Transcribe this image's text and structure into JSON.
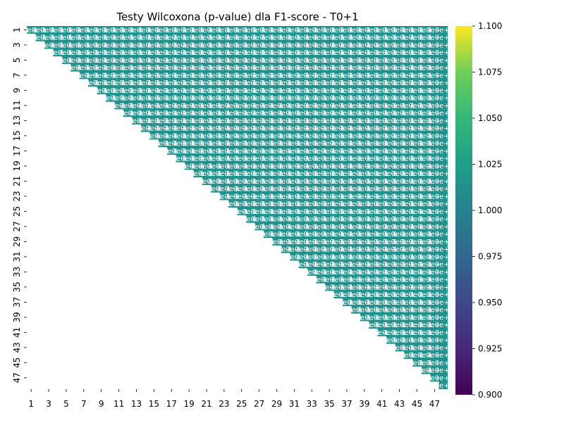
{
  "chart_data": {
    "type": "heatmap",
    "title": "Testy Wilcoxona (p-value) dla F1-score - T0+1",
    "xlabel": "",
    "ylabel": "",
    "n": 48,
    "mask": "lower-triangle (cells where column < row are blank)",
    "cell_value": 1.0,
    "cell_annotation": "1.0e+00",
    "cell_color": "#21918c",
    "annotation_color": "#ffffff",
    "x_tick_labels": [
      "1",
      "3",
      "5",
      "7",
      "9",
      "11",
      "13",
      "15",
      "17",
      "19",
      "21",
      "23",
      "25",
      "27",
      "29",
      "31",
      "33",
      "35",
      "37",
      "39",
      "41",
      "43",
      "45",
      "47"
    ],
    "y_tick_labels": [
      "1",
      "3",
      "5",
      "7",
      "9",
      "11",
      "13",
      "15",
      "17",
      "19",
      "21",
      "23",
      "25",
      "27",
      "29",
      "31",
      "33",
      "35",
      "37",
      "39",
      "41",
      "43",
      "45",
      "47"
    ],
    "colorbar": {
      "colormap": "viridis",
      "range": [
        0.9,
        1.1
      ],
      "tick_labels": [
        "0.900",
        "0.925",
        "0.950",
        "0.975",
        "1.000",
        "1.025",
        "1.050",
        "1.075",
        "1.100"
      ]
    }
  }
}
